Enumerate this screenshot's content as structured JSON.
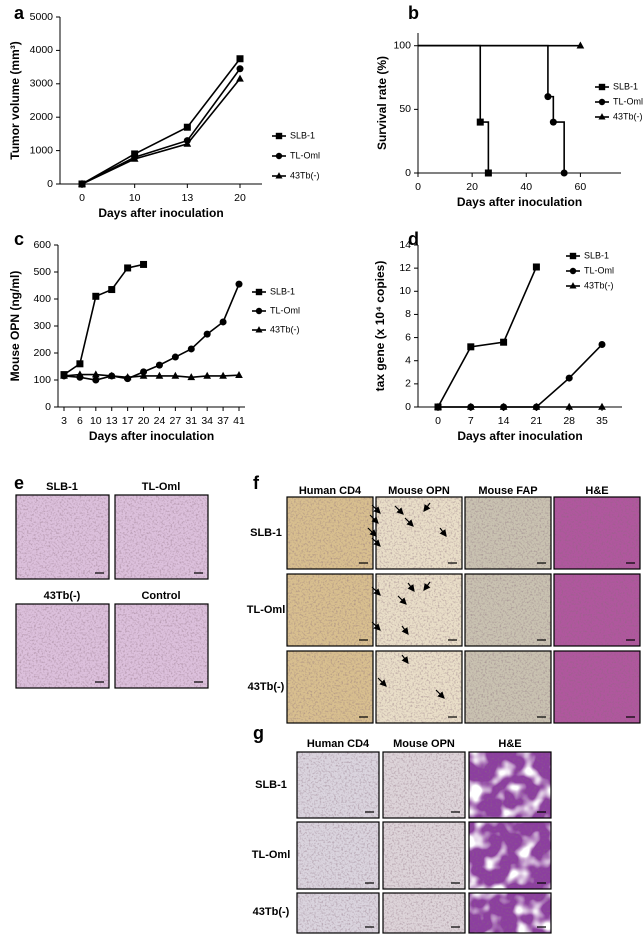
{
  "chart_data": [
    {
      "panel": "a",
      "type": "line",
      "ylabel": "Tumor volume (mm³)",
      "xlabel": "Days after inoculation",
      "categories": [
        0,
        10,
        13,
        20
      ],
      "ylim": [
        0,
        5000
      ],
      "yticks": [
        0,
        1000,
        2000,
        3000,
        4000,
        5000
      ],
      "legend": "right",
      "series": [
        {
          "name": "SLB-1",
          "color": "#000000",
          "marker": "square",
          "values": [
            0,
            900,
            1700,
            3750
          ]
        },
        {
          "name": "TL-Oml",
          "color": "#000000",
          "marker": "circle",
          "values": [
            0,
            800,
            1300,
            3450
          ]
        },
        {
          "name": "43Tb(-)",
          "color": "#000000",
          "marker": "triangle",
          "values": [
            0,
            750,
            1200,
            3150
          ]
        }
      ]
    },
    {
      "panel": "b",
      "type": "step",
      "ylabel": "Survival rate (%)",
      "xlabel": "Days after inoculation",
      "xlim": [
        0,
        75
      ],
      "xticks": [
        0,
        20,
        40,
        60
      ],
      "ylim": [
        0,
        110
      ],
      "yticks": [
        0,
        50,
        100
      ],
      "legend": "right",
      "series": [
        {
          "name": "SLB-1",
          "color": "#000000",
          "marker": "square",
          "x": [
            0,
            23,
            23,
            26,
            26
          ],
          "values": [
            100,
            100,
            40,
            40,
            0
          ]
        },
        {
          "name": "TL-Oml",
          "color": "#000000",
          "marker": "circle",
          "x": [
            0,
            48,
            48,
            50,
            50,
            54,
            54
          ],
          "values": [
            100,
            100,
            60,
            60,
            40,
            40,
            0
          ]
        },
        {
          "name": "43Tb(-)",
          "color": "#000000",
          "marker": "triangle",
          "x": [
            0,
            60
          ],
          "values": [
            100,
            100
          ]
        }
      ]
    },
    {
      "panel": "c",
      "type": "line",
      "ylabel": "Mouse OPN (ng/ml)",
      "xlabel": "Days after inoculation",
      "categories": [
        3,
        6,
        10,
        13,
        17,
        20,
        24,
        27,
        31,
        34,
        37,
        41
      ],
      "ylim": [
        0,
        600
      ],
      "yticks": [
        0,
        100,
        200,
        300,
        400,
        500,
        600
      ],
      "legend": "right",
      "series": [
        {
          "name": "SLB-1",
          "color": "#000000",
          "marker": "square",
          "values": [
            120,
            160,
            410,
            435,
            515,
            528,
            null,
            null,
            null,
            null,
            null,
            null
          ]
        },
        {
          "name": "TL-Oml",
          "color": "#000000",
          "marker": "circle",
          "values": [
            115,
            110,
            100,
            115,
            105,
            130,
            155,
            185,
            215,
            270,
            315,
            455
          ]
        },
        {
          "name": "43Tb(-)",
          "color": "#000000",
          "marker": "triangle",
          "values": [
            115,
            120,
            120,
            115,
            110,
            115,
            115,
            115,
            110,
            115,
            115,
            118
          ]
        }
      ]
    },
    {
      "panel": "d",
      "type": "line",
      "ylabel": "tax gene (x 10⁴ copies)",
      "xlabel": "Days after inoculation",
      "categories": [
        0,
        7,
        14,
        21,
        28,
        35
      ],
      "ylim": [
        0,
        14
      ],
      "yticks": [
        0,
        2,
        4,
        6,
        8,
        10,
        12,
        14
      ],
      "legend": "top right",
      "series": [
        {
          "name": "SLB-1",
          "color": "#000000",
          "marker": "square",
          "values": [
            0,
            5.2,
            5.6,
            12.1,
            null,
            null
          ]
        },
        {
          "name": "TL-Oml",
          "color": "#000000",
          "marker": "circle",
          "values": [
            0,
            0,
            0,
            0,
            2.5,
            5.4
          ]
        },
        {
          "name": "43Tb(-)",
          "color": "#000000",
          "marker": "triangle",
          "values": [
            0,
            0,
            0,
            0,
            0,
            0
          ]
        }
      ]
    }
  ],
  "panels": {
    "e": {
      "letter": "e",
      "labels": [
        "SLB-1",
        "TL-Oml",
        "43Tb(-)",
        "Control"
      ]
    },
    "f": {
      "letter": "f",
      "columns": [
        "Human CD4",
        "Mouse OPN",
        "Mouse FAP",
        "H&E"
      ],
      "rows": [
        "SLB-1",
        "TL-Oml",
        "43Tb(-)"
      ]
    },
    "g": {
      "letter": "g",
      "columns": [
        "Human CD4",
        "Mouse OPN",
        "H&E"
      ],
      "rows": [
        "SLB-1",
        "TL-Oml",
        "43Tb(-)"
      ]
    }
  }
}
